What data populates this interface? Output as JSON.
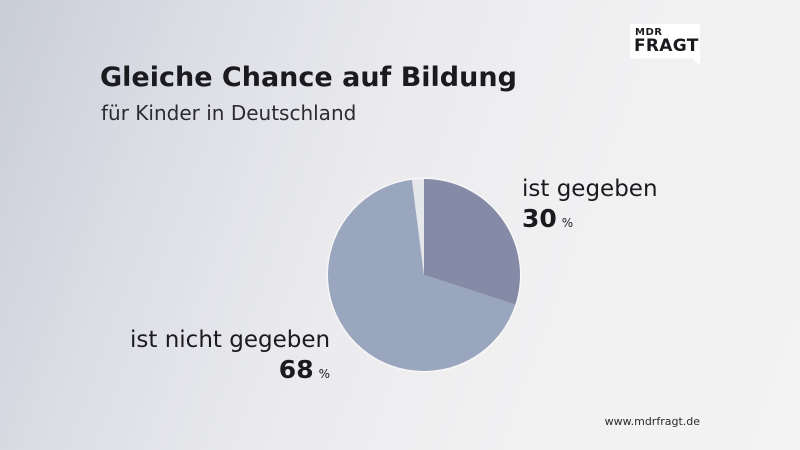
{
  "logo": {
    "line1": "MDR",
    "line2": "FRAGT"
  },
  "header": {
    "title": "Gleiche Chance auf Bildung",
    "subtitle": "für Kinder in Deutschland"
  },
  "footer": {
    "url": "www.mdrfragt.de"
  },
  "chart_data": {
    "type": "pie",
    "title": "Gleiche Chance auf Bildung",
    "subtitle": "für Kinder in Deutschland",
    "slices": [
      {
        "label": "ist gegeben",
        "value": 30,
        "display": "30",
        "unit": "%",
        "color": "#858ba6"
      },
      {
        "label": "ist nicht gegeben",
        "value": 68,
        "display": "68",
        "unit": "%",
        "color": "#9aa5be"
      },
      {
        "label": "",
        "value": 2,
        "display": "",
        "unit": "",
        "color": "#e6e7eb"
      }
    ],
    "start_angle": "12 o'clock",
    "direction": "clockwise"
  }
}
